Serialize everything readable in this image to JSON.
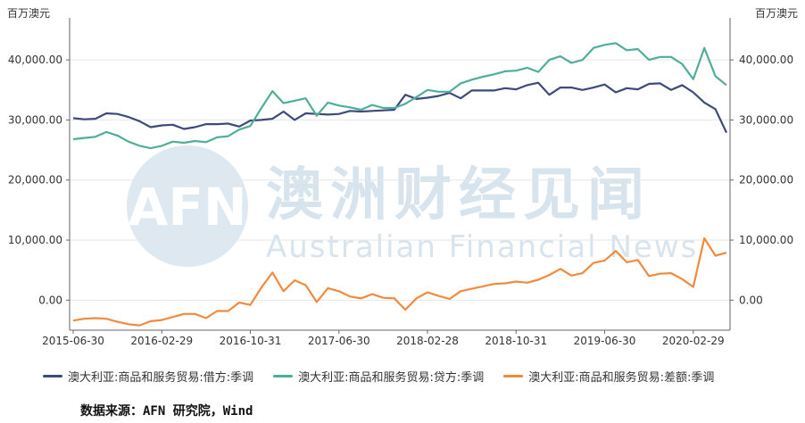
{
  "units": {
    "left": "百万澳元",
    "right": "百万澳元"
  },
  "watermark": {
    "badge": "AFN",
    "cn": "澳洲财经见闻",
    "en": "Australian Financial News",
    "small": "Financial News"
  },
  "source": "数据来源：AFN 研究院，Wind",
  "colors": {
    "debit": "#3d4a7a",
    "credit": "#4fae9a",
    "balance": "#f28a3c",
    "axis": "#333333",
    "grid": "#dddddd",
    "watermark": "#a9c6dd"
  },
  "chart_data": {
    "type": "line",
    "dual_axis": true,
    "ylim": [
      -5000,
      47000
    ],
    "y_ticks": [
      {
        "v": 0,
        "label": "0.00"
      },
      {
        "v": 10000,
        "label": "10,000.00"
      },
      {
        "v": 20000,
        "label": "20,000.00"
      },
      {
        "v": 30000,
        "label": "30,000.00"
      },
      {
        "v": 40000,
        "label": "40,000.00"
      }
    ],
    "x_tick_labels": [
      {
        "i": 0,
        "label": "2015-06-30"
      },
      {
        "i": 8,
        "label": "2016-02-29"
      },
      {
        "i": 16,
        "label": "2016-10-31"
      },
      {
        "i": 24,
        "label": "2017-06-30"
      },
      {
        "i": 32,
        "label": "2018-02-28"
      },
      {
        "i": 40,
        "label": "2018-10-31"
      },
      {
        "i": 48,
        "label": "2019-06-30"
      },
      {
        "i": 56,
        "label": "2020-02-29"
      }
    ],
    "x": [
      "2015-06",
      "2015-07",
      "2015-08",
      "2015-09",
      "2015-10",
      "2015-11",
      "2015-12",
      "2016-01",
      "2016-02",
      "2016-03",
      "2016-04",
      "2016-05",
      "2016-06",
      "2016-07",
      "2016-08",
      "2016-09",
      "2016-10",
      "2016-11",
      "2016-12",
      "2017-01",
      "2017-02",
      "2017-03",
      "2017-04",
      "2017-05",
      "2017-06",
      "2017-07",
      "2017-08",
      "2017-09",
      "2017-10",
      "2017-11",
      "2017-12",
      "2018-01",
      "2018-02",
      "2018-03",
      "2018-04",
      "2018-05",
      "2018-06",
      "2018-07",
      "2018-08",
      "2018-09",
      "2018-10",
      "2018-11",
      "2018-12",
      "2019-01",
      "2019-02",
      "2019-03",
      "2019-04",
      "2019-05",
      "2019-06",
      "2019-07",
      "2019-08",
      "2019-09",
      "2019-10",
      "2019-11",
      "2019-12",
      "2020-01",
      "2020-02",
      "2020-03",
      "2020-04",
      "2020-05"
    ],
    "series": [
      {
        "name": "澳大利亚:商品和服务贸易:借方:季调",
        "color": "#3d4a7a",
        "values": [
          30300,
          30100,
          30200,
          31100,
          31000,
          30500,
          29800,
          28800,
          29100,
          29200,
          28500,
          28800,
          29300,
          29300,
          29400,
          28900,
          29900,
          30000,
          30200,
          31400,
          30000,
          31100,
          31000,
          30900,
          31000,
          31500,
          31400,
          31500,
          31600,
          31700,
          34200,
          33500,
          33700,
          34000,
          34500,
          33600,
          34900,
          34900,
          34900,
          35300,
          35100,
          35800,
          36200,
          34200,
          35400,
          35400,
          35000,
          35400,
          35900,
          34600,
          35300,
          35100,
          36000,
          36100,
          35000,
          35800,
          34600,
          32900,
          31800,
          27900
        ]
      },
      {
        "name": "澳大利亚:商品和服务贸易:贷方:季调",
        "color": "#4fae9a",
        "values": [
          26800,
          27000,
          27200,
          28000,
          27400,
          26400,
          25700,
          25300,
          25700,
          26400,
          26200,
          26500,
          26300,
          27100,
          27300,
          28400,
          29000,
          32000,
          34800,
          32800,
          33200,
          33600,
          30700,
          32900,
          32400,
          32100,
          31700,
          32500,
          32000,
          32000,
          32700,
          33800,
          35000,
          34700,
          34700,
          36100,
          36700,
          37200,
          37600,
          38100,
          38200,
          38700,
          38000,
          40000,
          40600,
          39500,
          40000,
          42000,
          42500,
          42800,
          41600,
          41800,
          40000,
          40500,
          40500,
          39300,
          36800,
          42000,
          37300,
          35800
        ]
      },
      {
        "name": "澳大利亚:商品和服务贸易:差额:季调",
        "color": "#f28a3c",
        "values": [
          -3400,
          -3100,
          -3000,
          -3100,
          -3600,
          -4000,
          -4200,
          -3500,
          -3300,
          -2800,
          -2300,
          -2300,
          -3000,
          -1800,
          -1800,
          -400,
          -800,
          2100,
          4600,
          1500,
          3300,
          2500,
          -300,
          2000,
          1500,
          600,
          300,
          1000,
          400,
          300,
          -1600,
          300,
          1300,
          700,
          200,
          1500,
          1900,
          2300,
          2700,
          2800,
          3100,
          2900,
          3400,
          4200,
          5200,
          4100,
          4500,
          6200,
          6600,
          8200,
          6300,
          6700,
          4000,
          4400,
          4500,
          3500,
          2200,
          10300,
          7400,
          7900
        ]
      }
    ]
  }
}
